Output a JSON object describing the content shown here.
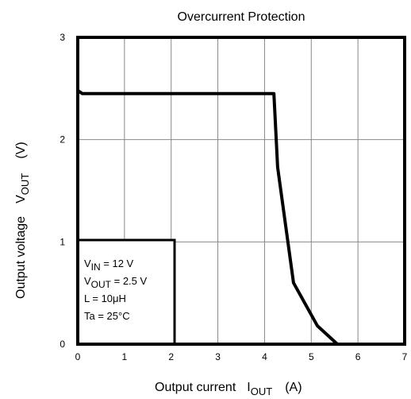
{
  "chart_data": {
    "type": "line",
    "title": "Overcurrent Protection",
    "xlabel": [
      "Output current",
      "I",
      "OUT",
      "(A)"
    ],
    "ylabel": [
      "Output voltage",
      "V",
      "OUT",
      "(V)"
    ],
    "xlim": [
      0,
      7
    ],
    "xticks": [
      0,
      1,
      2,
      3,
      4,
      5,
      6,
      7
    ],
    "ylim": [
      0,
      3
    ],
    "yticks": [
      0,
      1,
      2,
      3
    ],
    "grid": true,
    "series": [
      {
        "color": "#000000",
        "x": [
          0,
          0.1,
          4.2,
          4.28,
          4.62,
          5.13,
          5.56
        ],
        "values": [
          2.48,
          2.45,
          2.45,
          1.73,
          0.6,
          0.18,
          0
        ]
      }
    ],
    "annotations": [
      [
        "V",
        "IN",
        " = 12 V"
      ],
      [
        "V",
        "OUT",
        " = 2.5 V"
      ],
      [
        "L = 10μH"
      ],
      [
        "Ta = 25°C"
      ]
    ]
  }
}
